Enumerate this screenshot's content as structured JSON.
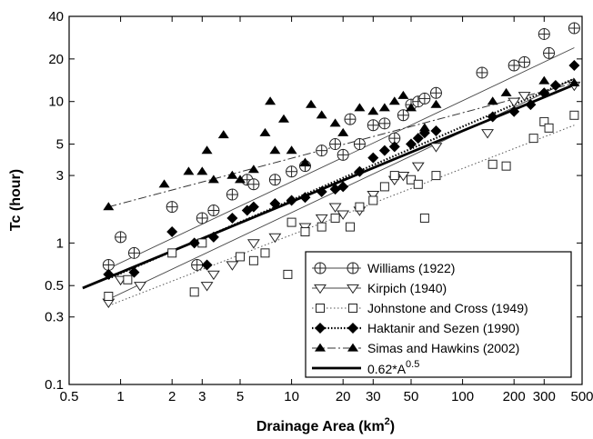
{
  "chart_data": {
    "type": "scatter",
    "xlabel": "Drainage Area (km",
    "xlabel_sup": "2",
    "xlabel_end": ")",
    "ylabel": "Tc (hour)",
    "xscale": "log",
    "yscale": "log",
    "xlim": [
      0.5,
      500
    ],
    "ylim": [
      0.1,
      40
    ],
    "x_ticks": [
      0.5,
      1,
      2,
      3,
      5,
      10,
      20,
      30,
      50,
      100,
      200,
      300,
      500
    ],
    "x_tick_labels": [
      "0.5",
      "1",
      "2",
      "3",
      "5",
      "10",
      "20",
      "30",
      "50",
      "100",
      "200",
      "300",
      "500"
    ],
    "y_ticks": [
      0.1,
      0.3,
      0.5,
      1,
      3,
      5,
      10,
      20,
      40
    ],
    "y_tick_labels": [
      "0.1",
      "0.3",
      "0.5",
      "1",
      "3",
      "5",
      "10",
      "20",
      "40"
    ],
    "legend_position": "lower-right",
    "series": [
      {
        "name": "Williams (1922)",
        "marker": "circle-cross",
        "line": "thin-solid",
        "points": [
          [
            0.85,
            0.7
          ],
          [
            1.0,
            1.1
          ],
          [
            1.2,
            0.85
          ],
          [
            2.0,
            1.8
          ],
          [
            2.8,
            0.7
          ],
          [
            3.0,
            1.5
          ],
          [
            3.5,
            1.7
          ],
          [
            4.5,
            2.2
          ],
          [
            5.5,
            2.8
          ],
          [
            6.0,
            2.6
          ],
          [
            8.0,
            2.8
          ],
          [
            10.0,
            3.2
          ],
          [
            12.0,
            3.5
          ],
          [
            15.0,
            4.5
          ],
          [
            18.0,
            5.0
          ],
          [
            20.0,
            4.2
          ],
          [
            22.0,
            7.5
          ],
          [
            25.0,
            5.0
          ],
          [
            30.0,
            6.8
          ],
          [
            35.0,
            7.0
          ],
          [
            40.0,
            5.5
          ],
          [
            45.0,
            8.0
          ],
          [
            50.0,
            9.5
          ],
          [
            55.0,
            10.0
          ],
          [
            60.0,
            10.5
          ],
          [
            70.0,
            11.5
          ],
          [
            130.0,
            16.0
          ],
          [
            200.0,
            18.0
          ],
          [
            230.0,
            19.0
          ],
          [
            300.0,
            30.0
          ],
          [
            320.0,
            22.0
          ],
          [
            450.0,
            33.0
          ]
        ],
        "fit": [
          [
            0.85,
            0.66
          ],
          [
            450,
            24.0
          ]
        ]
      },
      {
        "name": "Kirpich (1940)",
        "marker": "triangle-down-open",
        "line": "thin-solid",
        "points": [
          [
            0.85,
            0.38
          ],
          [
            1.0,
            0.55
          ],
          [
            1.3,
            0.5
          ],
          [
            3.2,
            0.5
          ],
          [
            3.5,
            0.6
          ],
          [
            4.5,
            0.7
          ],
          [
            6.0,
            1.0
          ],
          [
            8.0,
            1.1
          ],
          [
            12.0,
            1.3
          ],
          [
            15.0,
            1.5
          ],
          [
            18.0,
            1.8
          ],
          [
            20.0,
            1.6
          ],
          [
            25.0,
            1.7
          ],
          [
            30.0,
            2.2
          ],
          [
            40.0,
            2.8
          ],
          [
            45.0,
            3.0
          ],
          [
            55.0,
            3.5
          ],
          [
            70.0,
            4.8
          ],
          [
            140.0,
            6.0
          ],
          [
            200.0,
            10.0
          ],
          [
            230.0,
            11.0
          ],
          [
            450.0,
            13.0
          ]
        ],
        "fit": [
          [
            0.85,
            0.4
          ],
          [
            450,
            14.5
          ]
        ]
      },
      {
        "name": "Johnstone and Cross (1949)",
        "marker": "square-open",
        "line": "dotted",
        "points": [
          [
            0.85,
            0.42
          ],
          [
            1.1,
            0.55
          ],
          [
            2.0,
            0.85
          ],
          [
            2.7,
            0.45
          ],
          [
            3.0,
            1.0
          ],
          [
            5.0,
            0.8
          ],
          [
            6.0,
            0.75
          ],
          [
            7.0,
            0.85
          ],
          [
            9.5,
            0.6
          ],
          [
            10.0,
            1.4
          ],
          [
            12.0,
            1.2
          ],
          [
            15.0,
            1.3
          ],
          [
            18.0,
            1.5
          ],
          [
            22.0,
            1.3
          ],
          [
            25.0,
            1.8
          ],
          [
            30.0,
            2.0
          ],
          [
            35.0,
            2.5
          ],
          [
            40.0,
            3.0
          ],
          [
            50.0,
            2.8
          ],
          [
            55.0,
            2.6
          ],
          [
            60.0,
            1.5
          ],
          [
            70.0,
            3.0
          ],
          [
            150.0,
            3.6
          ],
          [
            180.0,
            3.5
          ],
          [
            260.0,
            5.5
          ],
          [
            300.0,
            7.2
          ],
          [
            320.0,
            6.5
          ],
          [
            450.0,
            8.0
          ]
        ],
        "fit": [
          [
            0.85,
            0.36
          ],
          [
            450,
            6.8
          ]
        ]
      },
      {
        "name": "Haktanir and Sezen (1990)",
        "marker": "diamond-filled",
        "line": "dotted-thick",
        "points": [
          [
            0.85,
            0.6
          ],
          [
            1.2,
            0.62
          ],
          [
            2.0,
            1.2
          ],
          [
            2.7,
            1.0
          ],
          [
            3.2,
            0.7
          ],
          [
            3.5,
            1.1
          ],
          [
            4.5,
            1.5
          ],
          [
            5.5,
            1.7
          ],
          [
            6.0,
            1.8
          ],
          [
            8.0,
            1.9
          ],
          [
            10.0,
            2.0
          ],
          [
            12.0,
            2.1
          ],
          [
            15.0,
            2.3
          ],
          [
            18.0,
            2.4
          ],
          [
            20.0,
            2.5
          ],
          [
            25.0,
            3.2
          ],
          [
            30.0,
            4.0
          ],
          [
            35.0,
            4.5
          ],
          [
            40.0,
            4.8
          ],
          [
            50.0,
            5.0
          ],
          [
            55.0,
            5.5
          ],
          [
            60.0,
            6.0
          ],
          [
            70.0,
            6.2
          ],
          [
            150.0,
            7.8
          ],
          [
            200.0,
            8.5
          ],
          [
            250.0,
            9.5
          ],
          [
            300.0,
            11.5
          ],
          [
            350.0,
            13.0
          ],
          [
            450.0,
            18.0
          ]
        ],
        "fit": [
          [
            0.85,
            0.56
          ],
          [
            450,
            14.5
          ]
        ]
      },
      {
        "name": "Simas and Hawkins (2002)",
        "marker": "triangle-up-filled",
        "line": "dash-dot",
        "points": [
          [
            0.85,
            1.8
          ],
          [
            1.8,
            2.6
          ],
          [
            2.5,
            3.2
          ],
          [
            3.0,
            3.2
          ],
          [
            3.2,
            4.5
          ],
          [
            3.5,
            2.8
          ],
          [
            4.0,
            5.8
          ],
          [
            4.5,
            3.0
          ],
          [
            5.0,
            2.8
          ],
          [
            6.0,
            3.3
          ],
          [
            7.0,
            6.0
          ],
          [
            7.5,
            10.0
          ],
          [
            8.0,
            4.5
          ],
          [
            9.0,
            7.5
          ],
          [
            10.0,
            4.5
          ],
          [
            12.0,
            3.7
          ],
          [
            13.0,
            9.5
          ],
          [
            15.0,
            8.0
          ],
          [
            18.0,
            7.0
          ],
          [
            20.0,
            6.0
          ],
          [
            25.0,
            9.0
          ],
          [
            30.0,
            8.5
          ],
          [
            35.0,
            9.0
          ],
          [
            40.0,
            10.0
          ],
          [
            45.0,
            11.0
          ],
          [
            50.0,
            9.0
          ],
          [
            60.0,
            6.5
          ],
          [
            70.0,
            9.5
          ],
          [
            150.0,
            10.0
          ],
          [
            180.0,
            11.5
          ],
          [
            300.0,
            14.0
          ],
          [
            450.0,
            13.5
          ]
        ],
        "fit": [
          [
            0.85,
            1.8
          ],
          [
            450,
            13.5
          ]
        ]
      }
    ],
    "reference_line": {
      "label": "0.62*A",
      "label_sup": "0.5",
      "line": "thick-solid",
      "coef": 0.62,
      "exponent": 0.5,
      "x_range": [
        0.6,
        450
      ]
    }
  }
}
